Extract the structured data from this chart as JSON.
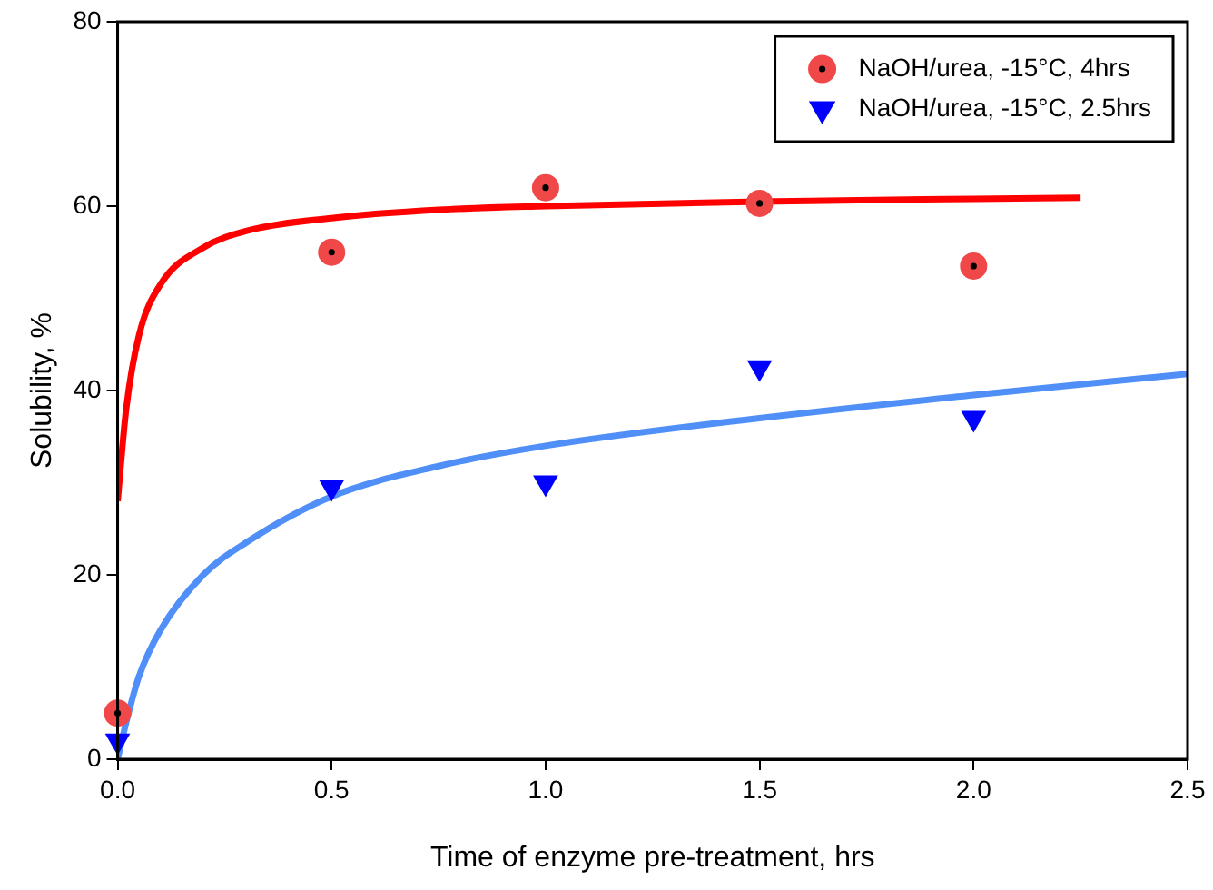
{
  "chart_data": {
    "type": "scatter",
    "xlabel": "Time of enzyme pre-treatment, hrs",
    "ylabel": "Solubility, %",
    "xlim": [
      0,
      2.5
    ],
    "ylim": [
      0,
      80
    ],
    "xticks": [
      {
        "value": 0,
        "label": "0.0"
      },
      {
        "value": 0.5,
        "label": "0.5"
      },
      {
        "value": 1,
        "label": "1.0"
      },
      {
        "value": 1.5,
        "label": "1.5"
      },
      {
        "value": 2,
        "label": "2.0"
      },
      {
        "value": 2.5,
        "label": "2.5"
      }
    ],
    "yticks": [
      0,
      20,
      40,
      60,
      80
    ],
    "grid": false,
    "legend": "top right",
    "series": [
      {
        "type": "line",
        "color": "#ff0000",
        "marker": "none",
        "x": [
          0,
          0.02,
          0.05,
          0.1,
          0.2,
          0.3,
          0.5,
          0.75,
          1.0,
          1.5,
          2.0,
          2.25
        ],
        "values": [
          28,
          38,
          46,
          51.5,
          55.5,
          57.3,
          58.7,
          59.6,
          60,
          60.5,
          60.8,
          60.9
        ]
      },
      {
        "type": "line",
        "color": "#4f8ff7",
        "marker": "none",
        "x": [
          0,
          0.02,
          0.05,
          0.1,
          0.2,
          0.3,
          0.5,
          0.75,
          1.0,
          1.5,
          2.0,
          2.5
        ],
        "values": [
          0,
          4,
          9,
          14,
          20,
          23.5,
          28.5,
          31.8,
          34,
          37,
          39.5,
          41.8
        ]
      },
      {
        "name": "NaOH/urea, -15°C, 4hrs",
        "color": "#f04848",
        "marker": "circle",
        "x": [
          0,
          0.5,
          1,
          1.5,
          2
        ],
        "values": [
          5,
          55,
          62,
          60.3,
          53.5
        ]
      },
      {
        "name": "NaOH/urea, -15°C, 2.5hrs",
        "color": "#0000ff",
        "marker": "triangle",
        "x": [
          0,
          0.5,
          1,
          1.5,
          2
        ],
        "values": [
          2,
          29.5,
          30,
          42.5,
          37
        ]
      }
    ]
  }
}
